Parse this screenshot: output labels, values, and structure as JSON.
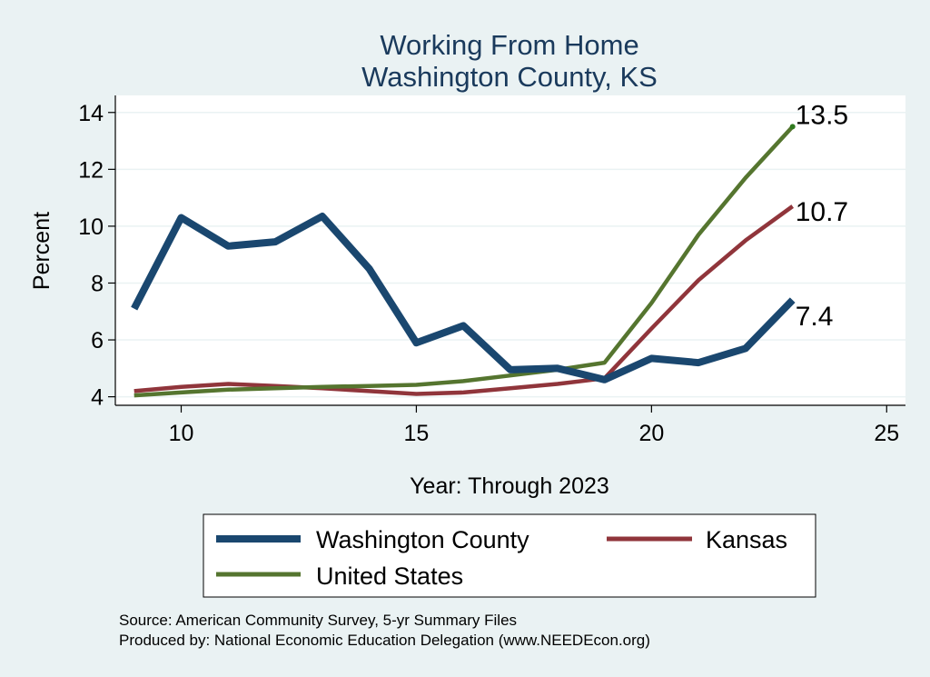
{
  "chart_data": {
    "type": "line",
    "title": [
      "Working From Home",
      "Washington County, KS"
    ],
    "xlabel": "Year: Through 2023",
    "ylabel": "Percent",
    "xlim": [
      8.6,
      25.4
    ],
    "ylim": [
      3.7,
      14.6
    ],
    "xticks": [
      10,
      15,
      20,
      25
    ],
    "yticks": [
      4,
      6,
      8,
      10,
      12,
      14
    ],
    "grid": true,
    "x": [
      9,
      10,
      11,
      12,
      13,
      14,
      15,
      16,
      17,
      18,
      19,
      20,
      21,
      22,
      23
    ],
    "series": [
      {
        "name": "Washington County",
        "color": "#1a476f",
        "values": [
          7.1,
          10.3,
          9.3,
          9.45,
          10.35,
          8.5,
          5.9,
          6.5,
          4.95,
          5.0,
          4.6,
          5.35,
          5.2,
          5.7,
          7.4
        ],
        "end_label": "7.4"
      },
      {
        "name": "Kansas",
        "color": "#90353b",
        "values": [
          4.2,
          4.35,
          4.45,
          4.38,
          4.3,
          4.2,
          4.1,
          4.15,
          4.3,
          4.45,
          4.65,
          6.4,
          8.1,
          9.5,
          10.7
        ],
        "end_label": "10.7"
      },
      {
        "name": "United States",
        "color": "#55752f",
        "values": [
          4.05,
          4.15,
          4.25,
          4.3,
          4.35,
          4.38,
          4.42,
          4.55,
          4.75,
          4.95,
          5.2,
          7.3,
          9.7,
          11.7,
          13.5
        ],
        "end_label": "13.5"
      }
    ],
    "legend": {
      "placement": "bottom",
      "entries": [
        "Washington County",
        "Kansas",
        "United States"
      ]
    }
  },
  "source_lines": [
    "Source: American Community Survey, 5-yr Summary Files",
    "Produced by: National Economic Education Delegation (www.NEEDEcon.org)"
  ]
}
